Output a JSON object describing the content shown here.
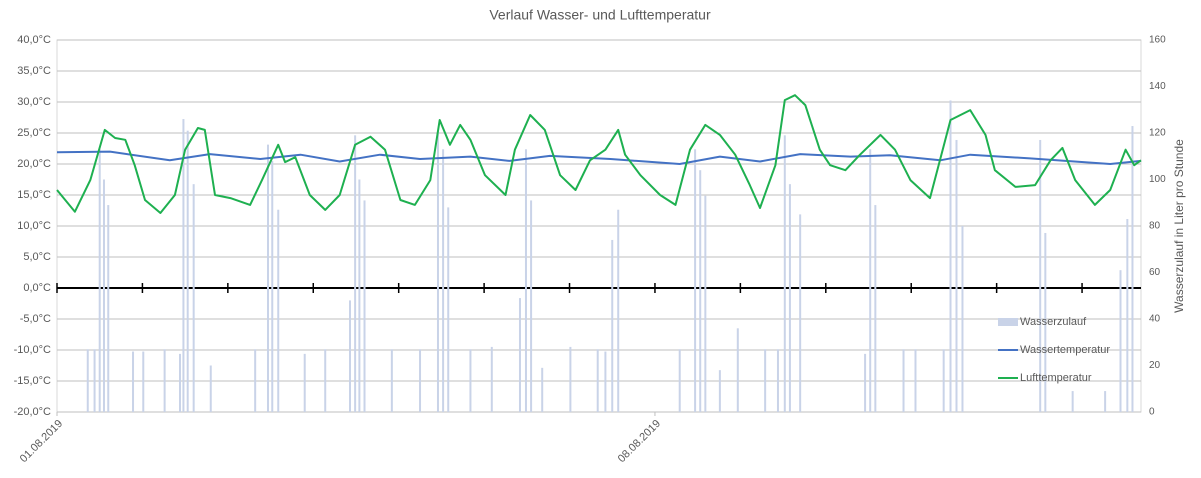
{
  "chart_data": {
    "type": "combo",
    "title": "Verlauf Wasser- und Lufttemperatur",
    "y2label": "Wasserzulauf in Liter pro Stunde",
    "xlim": [
      0,
      12.69
    ],
    "xticks": [
      {
        "value": 0,
        "label": "01.08.2019"
      },
      {
        "value": 7,
        "label": "08.08.2019"
      }
    ],
    "ylim": [
      -20,
      40
    ],
    "yticks": [
      {
        "value": -20,
        "label": "-20,0°C"
      },
      {
        "value": -15,
        "label": "-15,0°C"
      },
      {
        "value": -10,
        "label": "-10,0°C"
      },
      {
        "value": -5,
        "label": "-5,0°C"
      },
      {
        "value": 0,
        "label": "0,0°C"
      },
      {
        "value": 5,
        "label": "5,0°C"
      },
      {
        "value": 10,
        "label": "10,0°C"
      },
      {
        "value": 15,
        "label": "15,0°C"
      },
      {
        "value": 20,
        "label": "20,0°C"
      },
      {
        "value": 25,
        "label": "25,0°C"
      },
      {
        "value": 30,
        "label": "30,0°C"
      },
      {
        "value": 35,
        "label": "35,0°C"
      },
      {
        "value": 40,
        "label": "40,0°C"
      }
    ],
    "y2lim": [
      0,
      160
    ],
    "y2ticks": [
      0,
      20,
      40,
      60,
      80,
      100,
      120,
      140,
      160
    ],
    "grid": true,
    "series": [
      {
        "name": "Wasserzulauf",
        "type": "bar",
        "axis": "y2",
        "color": "#c9d3e8",
        "x": [
          0.36,
          0.44,
          0.5,
          0.55,
          0.6,
          0.89,
          1.01,
          1.26,
          1.44,
          1.48,
          1.53,
          1.6,
          1.8,
          2.32,
          2.47,
          2.52,
          2.59,
          2.9,
          3.14,
          3.43,
          3.49,
          3.54,
          3.6,
          3.92,
          4.25,
          4.46,
          4.52,
          4.58,
          4.84,
          5.09,
          5.42,
          5.49,
          5.55,
          5.68,
          6.01,
          6.33,
          6.42,
          6.5,
          6.57,
          7.29,
          7.47,
          7.53,
          7.59,
          7.76,
          7.97,
          8.29,
          8.44,
          8.52,
          8.58,
          8.7,
          9.46,
          9.52,
          9.58,
          9.91,
          10.05,
          10.38,
          10.46,
          10.53,
          10.6,
          11.51,
          11.57,
          11.89,
          12.27,
          12.45,
          12.53,
          12.59
        ],
        "values": [
          27,
          27,
          113,
          100,
          89,
          26,
          26,
          27,
          25,
          126,
          121,
          98,
          20,
          27,
          115,
          108,
          87,
          25,
          27,
          48,
          119,
          100,
          91,
          27,
          27,
          121,
          113,
          88,
          27,
          28,
          49,
          113,
          91,
          19,
          28,
          27,
          26,
          74,
          87,
          27,
          113,
          104,
          93,
          18,
          36,
          27,
          27,
          119,
          98,
          85,
          25,
          113,
          89,
          27,
          27,
          27,
          134,
          117,
          80,
          117,
          77,
          9,
          9,
          61,
          83,
          123
        ]
      },
      {
        "name": "Wassertemperatur",
        "type": "line",
        "color": "#4472c4",
        "x": [
          0,
          0.62,
          1.32,
          1.79,
          2.38,
          2.85,
          3.31,
          3.78,
          4.25,
          4.84,
          5.3,
          5.77,
          6.48,
          7.29,
          7.76,
          8.23,
          8.7,
          9.29,
          9.75,
          10.34,
          10.69,
          11.39,
          12.33,
          12.69
        ],
        "values": [
          21.9,
          22.0,
          20.6,
          21.6,
          20.8,
          21.5,
          20.4,
          21.5,
          20.8,
          21.2,
          20.5,
          21.3,
          20.8,
          20.0,
          21.2,
          20.4,
          21.6,
          21.2,
          21.4,
          20.6,
          21.5,
          20.9,
          20.0,
          20.5
        ]
      },
      {
        "name": "Lufttemperatur",
        "type": "line",
        "color": "#1eb050",
        "x": [
          0,
          0.21,
          0.39,
          0.56,
          0.68,
          0.8,
          0.91,
          1.03,
          1.21,
          1.38,
          1.5,
          1.65,
          1.73,
          1.85,
          2.03,
          2.26,
          2.4,
          2.59,
          2.67,
          2.79,
          2.96,
          3.14,
          3.31,
          3.49,
          3.67,
          3.84,
          4.02,
          4.19,
          4.37,
          4.48,
          4.6,
          4.72,
          4.84,
          5.01,
          5.25,
          5.36,
          5.54,
          5.71,
          5.89,
          6.07,
          6.24,
          6.42,
          6.57,
          6.65,
          6.83,
          7.06,
          7.24,
          7.41,
          7.59,
          7.76,
          7.94,
          8.11,
          8.23,
          8.41,
          8.52,
          8.64,
          8.76,
          8.93,
          9.05,
          9.23,
          9.4,
          9.64,
          9.81,
          9.99,
          10.22,
          10.46,
          10.69,
          10.87,
          10.98,
          11.22,
          11.45,
          11.63,
          11.77,
          11.92,
          12.15,
          12.33,
          12.51,
          12.61,
          12.69
        ],
        "values": [
          15.8,
          12.3,
          17.4,
          25.5,
          24.2,
          23.9,
          19.8,
          14.2,
          12.1,
          15.0,
          22.3,
          25.8,
          25.5,
          15.0,
          14.5,
          13.4,
          17.4,
          23.1,
          20.3,
          21.1,
          15.0,
          12.6,
          15.0,
          23.1,
          24.4,
          22.3,
          14.2,
          13.4,
          17.4,
          27.1,
          23.1,
          26.3,
          23.9,
          18.2,
          15.0,
          22.3,
          27.9,
          25.5,
          18.2,
          15.8,
          20.6,
          22.3,
          25.5,
          21.5,
          18.2,
          15.0,
          13.4,
          22.3,
          26.3,
          24.7,
          21.5,
          16.6,
          12.9,
          19.8,
          30.3,
          31.1,
          29.5,
          22.3,
          19.8,
          19.0,
          21.5,
          24.7,
          22.3,
          17.4,
          14.5,
          27.1,
          28.7,
          24.7,
          19.0,
          16.3,
          16.6,
          20.6,
          22.6,
          17.4,
          13.4,
          15.8,
          22.3,
          19.8,
          20.6
        ]
      }
    ]
  }
}
